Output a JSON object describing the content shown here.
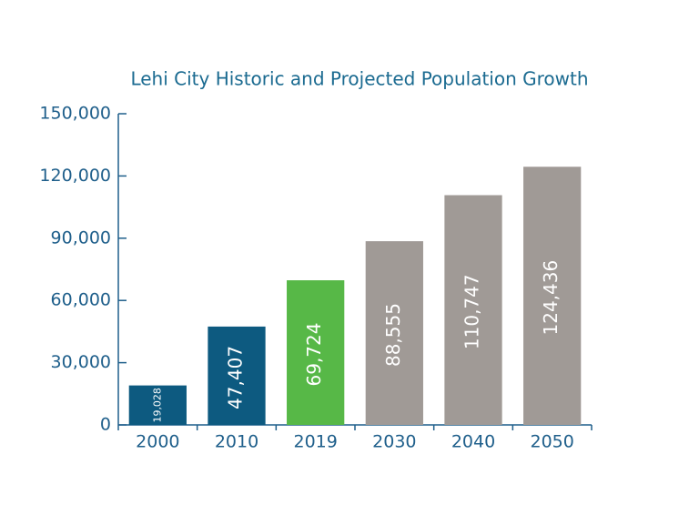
{
  "chart_data": {
    "type": "bar",
    "title": "Lehi City Historic and Projected Population Growth",
    "categories": [
      "2000",
      "2010",
      "2019",
      "2030",
      "2040",
      "2050"
    ],
    "values": [
      19028,
      47407,
      69724,
      88555,
      110747,
      124436
    ],
    "value_labels": [
      "19,028",
      "47,407",
      "69,724",
      "88,555",
      "110,747",
      "124,436"
    ],
    "colors": [
      "#0d5a80",
      "#0d5a80",
      "#57b847",
      "#a09a96",
      "#a09a96",
      "#a09a96"
    ],
    "ylim": [
      0,
      150000
    ],
    "yticks": [
      0,
      {
        "value": 30000,
        "label": "30,000"
      },
      {
        "value": 60000,
        "label": "60,000"
      },
      {
        "value": 90000,
        "label": "90,000"
      },
      {
        "value": 120000,
        "label": "120,000"
      },
      {
        "value": 150000,
        "label": "150,000"
      }
    ]
  }
}
